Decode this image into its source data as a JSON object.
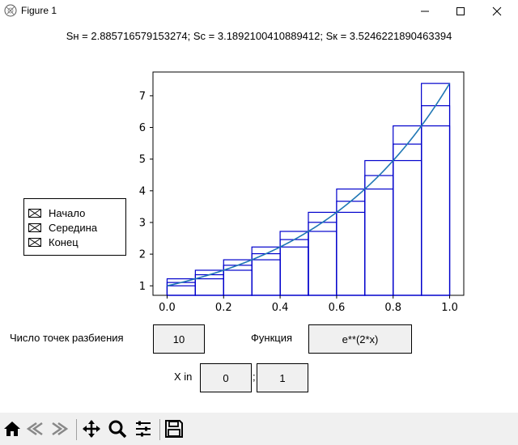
{
  "window": {
    "title": "Figure 1",
    "controls": [
      "minimize",
      "maximize",
      "close"
    ]
  },
  "sums_text": "Sн = 2.885716579153274; Sc = 3.1892100410889412; Sк = 3.5246221890463394",
  "legend": {
    "items": [
      {
        "label": "Начало",
        "checked": true
      },
      {
        "label": "Середина",
        "checked": true
      },
      {
        "label": "Конец",
        "checked": true
      }
    ]
  },
  "form": {
    "partitions_label": "Число точек разбиения",
    "partitions_value": "10",
    "function_label": "Функция",
    "function_value": "e**(2*x)",
    "x_label": "X in",
    "x_from": "0",
    "x_sep": ";",
    "x_to": "1"
  },
  "toolbar": {
    "icons": [
      "home-icon",
      "back-icon",
      "forward-icon",
      "pan-icon",
      "zoom-icon",
      "configure-icon",
      "save-icon"
    ]
  },
  "colors": {
    "rect_edge": "#0000cc",
    "curve": "#1f77b4",
    "toolbar_bg": "#f0f0f0"
  },
  "chart_data": {
    "type": "line",
    "function": "e**(2*x)",
    "xlim": [
      -0.05,
      1.05
    ],
    "ylim": [
      0.7,
      7.75
    ],
    "xticks": [
      0.0,
      0.2,
      0.4,
      0.6,
      0.8,
      1.0
    ],
    "xtick_labels": [
      "0.0",
      "0.2",
      "0.4",
      "0.6",
      "0.8",
      "1.0"
    ],
    "yticks": [
      1,
      2,
      3,
      4,
      5,
      6,
      7
    ],
    "ytick_labels": [
      "1",
      "2",
      "3",
      "4",
      "5",
      "6",
      "7"
    ],
    "interval": [
      0,
      1
    ],
    "n": 10,
    "series": [
      {
        "name": "Начало",
        "kind": "rectangles",
        "values": [
          1.0,
          1.2214,
          1.4918,
          1.8221,
          2.2255,
          2.7183,
          3.3201,
          4.0552,
          4.953,
          6.0496
        ]
      },
      {
        "name": "Середина",
        "kind": "rectangles",
        "values": [
          1.1052,
          1.3499,
          1.6487,
          2.0138,
          2.4596,
          3.0042,
          3.6693,
          4.4817,
          5.4739,
          6.6859
        ]
      },
      {
        "name": "Конец",
        "kind": "rectangles",
        "values": [
          1.2214,
          1.4918,
          1.8221,
          2.2255,
          2.7183,
          3.3201,
          4.0552,
          4.953,
          6.0496,
          7.3891
        ]
      }
    ]
  }
}
